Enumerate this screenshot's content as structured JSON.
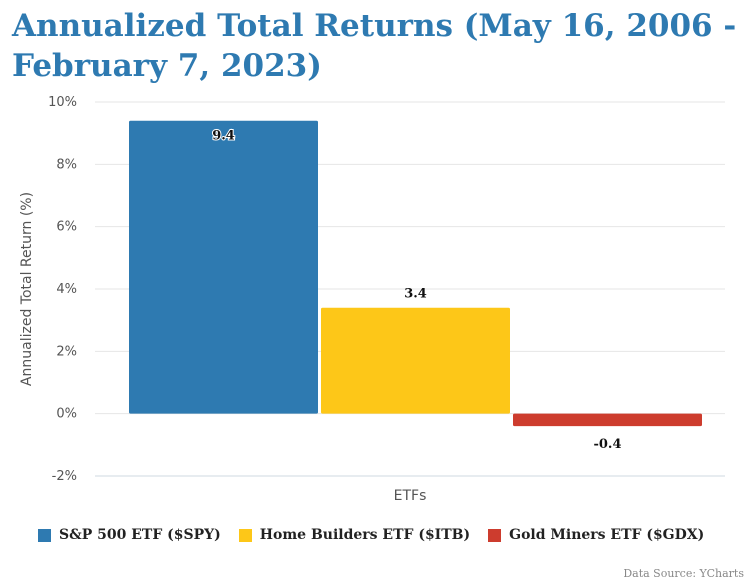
{
  "chart_data": {
    "type": "bar",
    "title": "Annualized Total Returns (May 16, 2006 - February 7, 2023)",
    "xlabel": "ETFs",
    "ylabel": "Annualized Total Return (%)",
    "categories": [
      "ETFs"
    ],
    "series": [
      {
        "name": "S&P 500 ETF ($SPY)",
        "values": [
          9.4
        ],
        "color": "#2e7ab1",
        "label": "9.4"
      },
      {
        "name": "Home Builders ETF ($ITB)",
        "values": [
          3.4
        ],
        "color": "#fdc718",
        "label": "3.4"
      },
      {
        "name": "Gold Miners ETF ($GDX)",
        "values": [
          -0.4
        ],
        "color": "#cd3c2e",
        "label": "-0.4"
      }
    ],
    "ylim": [
      -2,
      10
    ],
    "yticks": [
      -2,
      0,
      2,
      4,
      6,
      8,
      10
    ],
    "ytick_labels": [
      "-2%",
      "0%",
      "2%",
      "4%",
      "6%",
      "8%",
      "10%"
    ],
    "grid": true,
    "legend_position": "bottom"
  },
  "footer": {
    "source": "Data Source: YCharts"
  }
}
